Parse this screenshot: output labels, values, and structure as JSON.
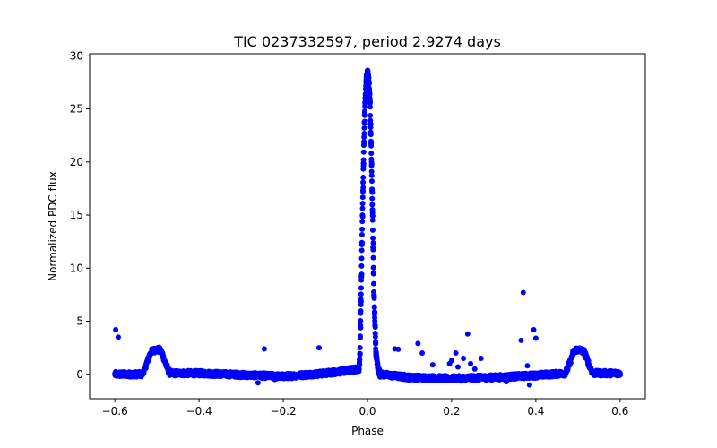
{
  "chart_data": {
    "type": "scatter",
    "title": "TIC 0237332597, period 2.9274 days",
    "xlabel": "Phase",
    "ylabel": "Normalized PDC flux",
    "xlim": [
      -0.66,
      0.66
    ],
    "ylim": [
      -2.3,
      30.2
    ],
    "xticks": [
      -0.6,
      -0.4,
      -0.2,
      0.0,
      0.2,
      0.4,
      0.6
    ],
    "xtick_labels": [
      "−0.6",
      "−0.4",
      "−0.2",
      "0.0",
      "0.2",
      "0.4",
      "0.6"
    ],
    "yticks": [
      0,
      5,
      10,
      15,
      20,
      25,
      30
    ],
    "ytick_labels": [
      "0",
      "5",
      "10",
      "15",
      "20",
      "25",
      "30"
    ],
    "marker_color": "#0000ff",
    "grid": false,
    "baseline": {
      "x_range": [
        -0.6,
        0.6
      ],
      "level": 0.0,
      "scatter": 0.25
    },
    "curve": [
      [
        -0.6,
        0.0
      ],
      [
        -0.535,
        0.0
      ],
      [
        -0.525,
        1.0
      ],
      [
        -0.515,
        2.1
      ],
      [
        -0.505,
        2.3
      ],
      [
        -0.495,
        2.3
      ],
      [
        -0.488,
        2.0
      ],
      [
        -0.48,
        1.0
      ],
      [
        -0.47,
        0.1
      ],
      [
        -0.4,
        0.1
      ],
      [
        -0.2,
        -0.2
      ],
      [
        -0.1,
        0.1
      ],
      [
        -0.02,
        0.5
      ],
      [
        -0.018,
        2.0
      ],
      [
        -0.015,
        8.0
      ],
      [
        -0.012,
        15.0
      ],
      [
        -0.009,
        21.0
      ],
      [
        -0.006,
        25.5
      ],
      [
        -0.003,
        27.8
      ],
      [
        0.0,
        28.5
      ],
      [
        0.003,
        27.8
      ],
      [
        0.006,
        25.5
      ],
      [
        0.009,
        21.0
      ],
      [
        0.012,
        15.0
      ],
      [
        0.015,
        8.0
      ],
      [
        0.02,
        2.0
      ],
      [
        0.025,
        0.5
      ],
      [
        0.03,
        0.0
      ],
      [
        0.1,
        -0.3
      ],
      [
        0.2,
        -0.4
      ],
      [
        0.3,
        -0.3
      ],
      [
        0.4,
        -0.1
      ],
      [
        0.47,
        0.1
      ],
      [
        0.48,
        1.0
      ],
      [
        0.488,
        2.0
      ],
      [
        0.495,
        2.3
      ],
      [
        0.505,
        2.3
      ],
      [
        0.515,
        2.1
      ],
      [
        0.525,
        1.0
      ],
      [
        0.535,
        0.1
      ],
      [
        0.6,
        0.1
      ]
    ],
    "outliers": [
      [
        -0.598,
        4.2
      ],
      [
        -0.592,
        3.5
      ],
      [
        -0.245,
        2.4
      ],
      [
        -0.115,
        2.5
      ],
      [
        0.065,
        2.4
      ],
      [
        0.073,
        2.35
      ],
      [
        0.12,
        2.9
      ],
      [
        0.13,
        2.0
      ],
      [
        0.155,
        0.9
      ],
      [
        0.195,
        1.0
      ],
      [
        0.2,
        1.3
      ],
      [
        0.21,
        2.0
      ],
      [
        0.215,
        0.7
      ],
      [
        0.228,
        1.5
      ],
      [
        0.238,
        3.8
      ],
      [
        0.245,
        1.0
      ],
      [
        0.255,
        0.5
      ],
      [
        0.27,
        1.5
      ],
      [
        0.365,
        3.2
      ],
      [
        0.37,
        7.7
      ],
      [
        0.38,
        0.8
      ],
      [
        0.385,
        -1.0
      ],
      [
        0.395,
        4.2
      ],
      [
        0.4,
        3.4
      ],
      [
        -0.26,
        -0.8
      ],
      [
        -0.22,
        -0.5
      ],
      [
        0.33,
        -0.7
      ]
    ]
  }
}
